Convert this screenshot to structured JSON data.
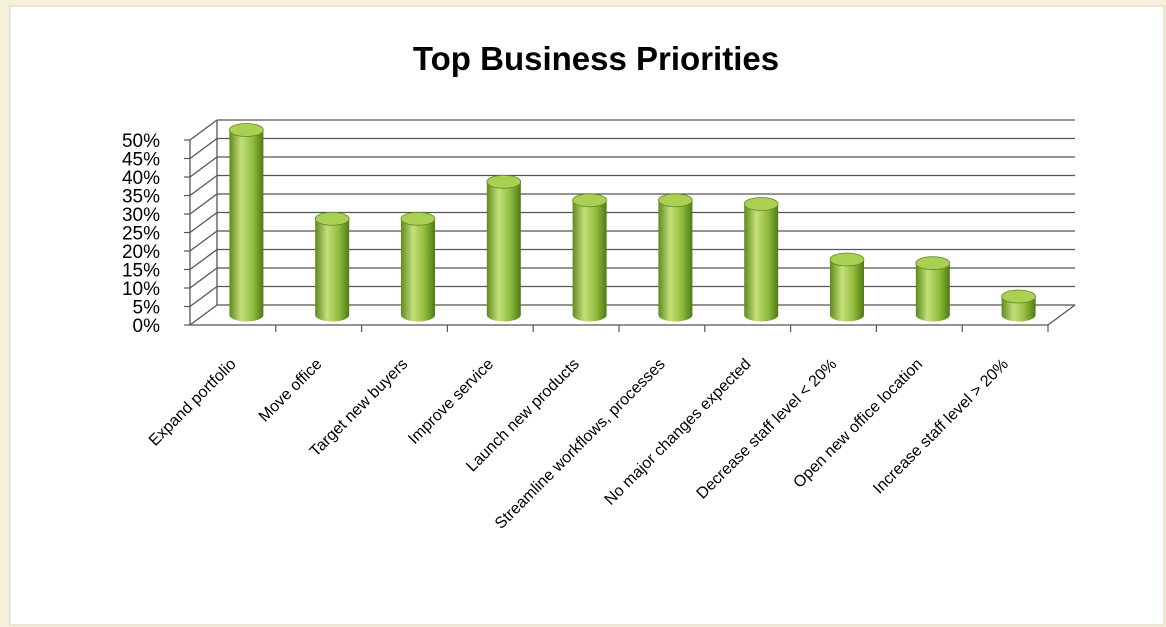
{
  "chart_data": {
    "type": "bar",
    "title": "Top Business Priorities",
    "xlabel": "",
    "ylabel": "",
    "categories": [
      "Expand portfolio",
      "Move office",
      "Target new buyers",
      "Improve service",
      "Launch new products",
      "Streamline workflows, processes",
      "No major changes expected",
      "Decrease staff level < 20%",
      "Open new office location",
      "Increase staff level > 20%"
    ],
    "values": [
      50,
      26,
      26,
      36,
      31,
      31,
      30,
      15,
      14,
      5
    ],
    "ylim": [
      0,
      50
    ],
    "yticks": [
      "0%",
      "5%",
      "10%",
      "15%",
      "20%",
      "25%",
      "30%",
      "35%",
      "40%",
      "45%",
      "50%"
    ],
    "grid": true,
    "legend": "none",
    "bar_style": "3d-cylinder",
    "colors": {
      "bar": "#8fba3c",
      "bar_dark": "#5f8a1e",
      "bar_light": "#c4e07a",
      "bar_top": "#a9d052",
      "grid": "#555555",
      "background": "#f4f0dc",
      "plot_background": "#ffffff"
    }
  }
}
